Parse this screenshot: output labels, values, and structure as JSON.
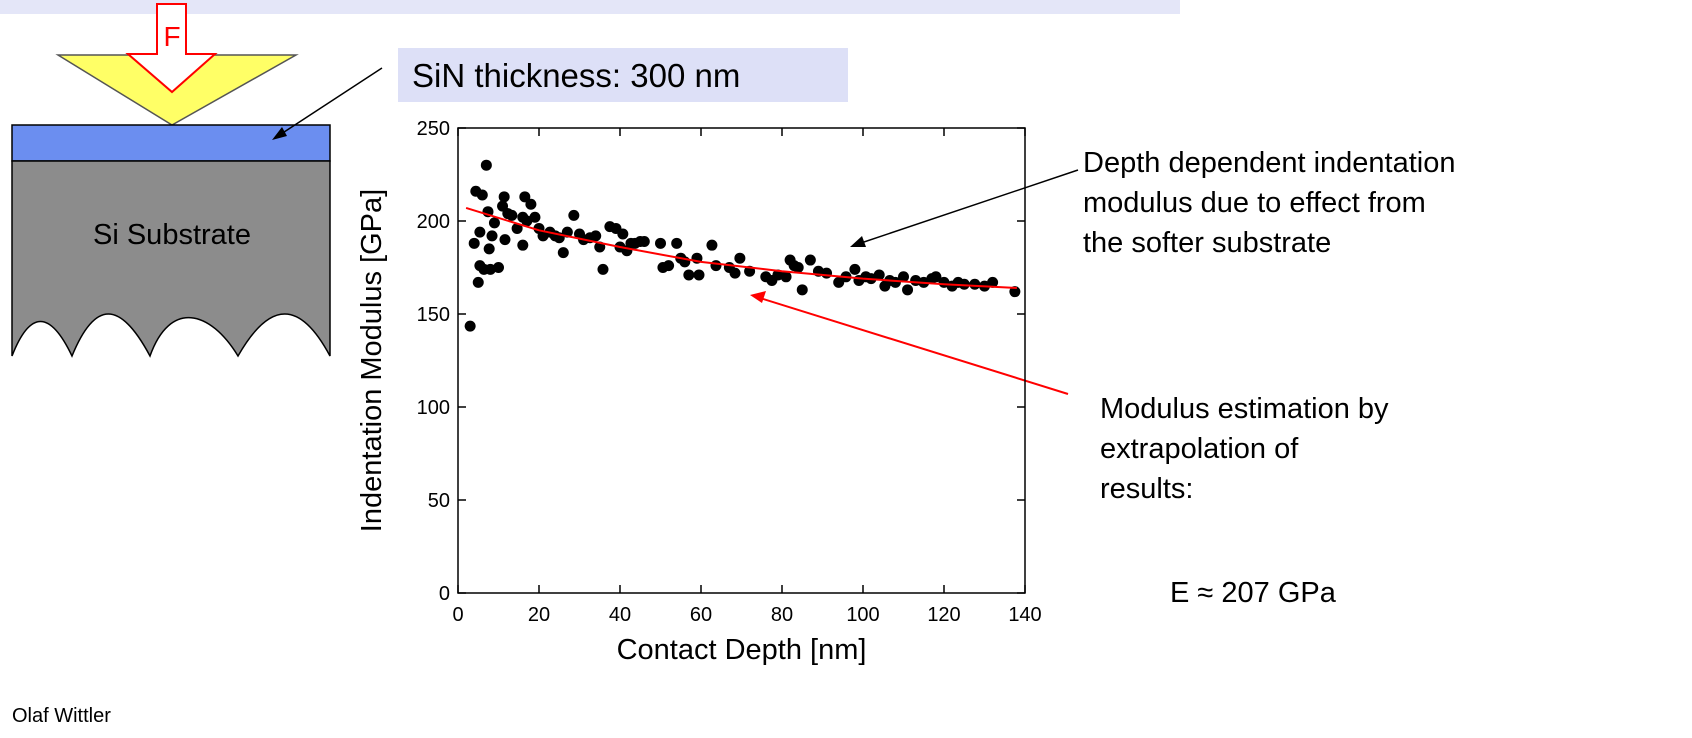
{
  "diagram": {
    "force_label": "F",
    "substrate_label": "Si Substrate",
    "film_label": "SiN thickness: 300 nm"
  },
  "author": "Olaf Wittler",
  "annotations": {
    "depth": [
      "Depth dependent indentation",
      "modulus due to effect from",
      "the softer substrate"
    ],
    "estimate": [
      "Modulus estimation by",
      "extrapolation of",
      "results:"
    ],
    "result": "E ≈ 207 GPa"
  },
  "chart_data": {
    "type": "scatter",
    "xlabel": "Contact Depth [nm]",
    "ylabel": "Indentation Modulus [GPa]",
    "xlim": [
      0,
      140
    ],
    "ylim": [
      0,
      250
    ],
    "xticks": [
      0,
      20,
      40,
      60,
      80,
      100,
      120,
      140
    ],
    "yticks": [
      0,
      50,
      100,
      150,
      200,
      250
    ],
    "color": "#000000",
    "x": [
      3,
      4,
      4.4,
      5,
      5.4,
      5.4,
      6,
      6.4,
      7,
      7.4,
      7.7,
      8,
      8.4,
      9,
      10,
      11,
      11.4,
      11.6,
      12.3,
      13.3,
      14.6,
      16,
      16,
      16.5,
      17,
      18,
      19,
      20,
      21,
      22.7,
      24,
      25,
      26,
      27,
      28.6,
      30,
      31,
      32.6,
      34,
      35,
      35.8,
      37.5,
      39,
      40,
      40.7,
      41.7,
      42.7,
      43.7,
      45,
      46,
      50,
      50.6,
      52,
      54,
      55,
      56,
      57,
      59,
      59.5,
      62.7,
      63.7,
      67,
      68.4,
      69.6,
      72,
      76,
      77.5,
      79,
      81,
      82,
      83,
      84,
      85,
      87,
      89,
      91,
      94,
      95.8,
      98,
      99,
      100.7,
      102,
      104,
      105.4,
      106.6,
      108,
      110,
      111,
      113,
      115,
      117,
      118,
      120,
      122,
      123.5,
      125,
      127.6,
      130,
      132,
      137.5
    ],
    "values": [
      143.5,
      188,
      216,
      167,
      176,
      194,
      214,
      174,
      230,
      205,
      185,
      174,
      192,
      199,
      175,
      208,
      213,
      190,
      204,
      203,
      196,
      187,
      202,
      213,
      200,
      209,
      202,
      196,
      192,
      194,
      192,
      191,
      183,
      194,
      203,
      193,
      190,
      191,
      192,
      186,
      174,
      197,
      196,
      186,
      193,
      184,
      188,
      188,
      189,
      189,
      188,
      175,
      176,
      188,
      180,
      178,
      171,
      180,
      171,
      187,
      176,
      175,
      172,
      180,
      173,
      170,
      168,
      171,
      170,
      179,
      176,
      175,
      163,
      179,
      173,
      172,
      167,
      170,
      174,
      168,
      170,
      169,
      171,
      165,
      168,
      167,
      170,
      163,
      168,
      167,
      169,
      170,
      167,
      165,
      167,
      166,
      166,
      165,
      167,
      162
    ],
    "fit": {
      "color": "#ff0000",
      "x": [
        2,
        20,
        40,
        60,
        80,
        100,
        120,
        138
      ],
      "values": [
        207,
        195,
        186,
        178,
        173,
        169,
        166,
        164
      ]
    }
  }
}
